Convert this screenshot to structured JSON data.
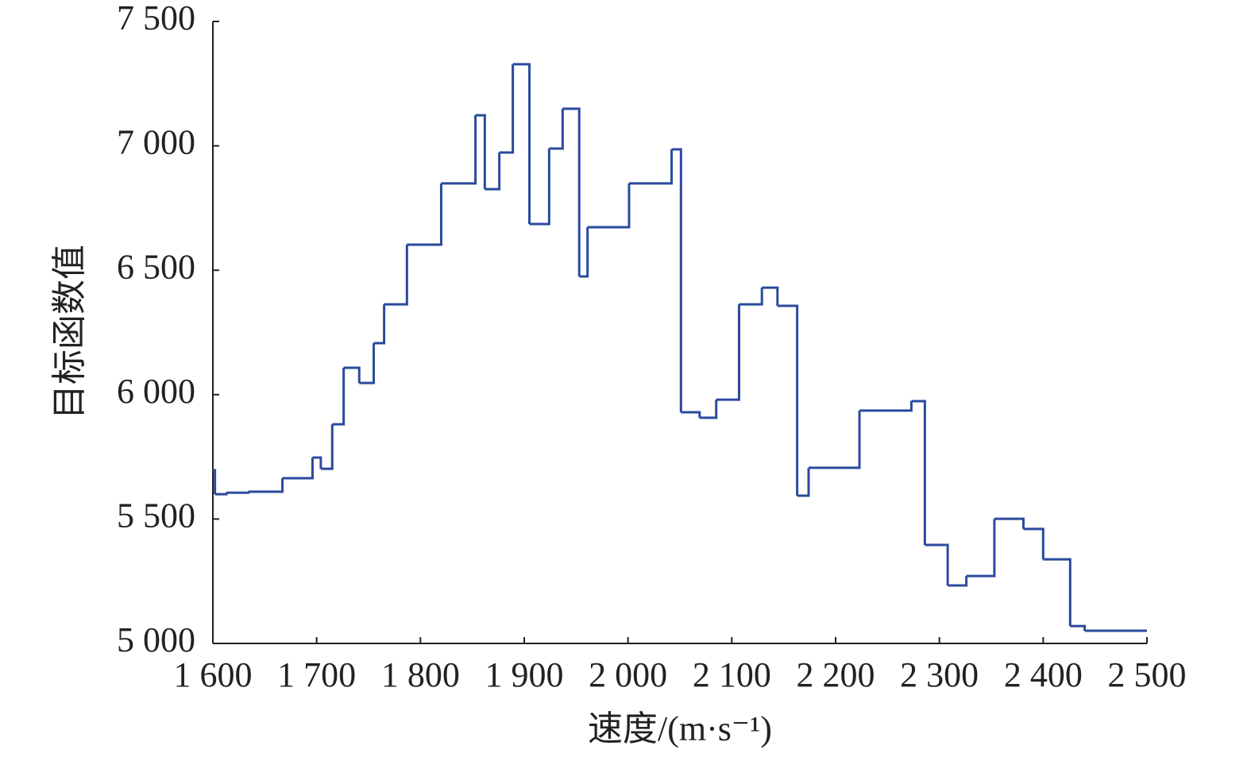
{
  "chart_data": {
    "type": "line",
    "step": "post",
    "x_label": "速度/(m·s⁻¹)",
    "y_label": "目标函数值",
    "xlim": [
      1600,
      2500
    ],
    "ylim": [
      5000,
      7500
    ],
    "xticks": [
      {
        "value": 1600,
        "label": "1 600"
      },
      {
        "value": 1700,
        "label": "1 700"
      },
      {
        "value": 1800,
        "label": "1 800"
      },
      {
        "value": 1900,
        "label": "1 900"
      },
      {
        "value": 2000,
        "label": "2 000"
      },
      {
        "value": 2100,
        "label": "2 100"
      },
      {
        "value": 2200,
        "label": "2 200"
      },
      {
        "value": 2300,
        "label": "2 300"
      },
      {
        "value": 2400,
        "label": "2 400"
      },
      {
        "value": 2500,
        "label": "2 500"
      }
    ],
    "yticks": [
      {
        "value": 5000,
        "label": "5 000"
      },
      {
        "value": 5500,
        "label": "5 500"
      },
      {
        "value": 6000,
        "label": "6 000"
      },
      {
        "value": 6500,
        "label": "6 500"
      },
      {
        "value": 7000,
        "label": "7 000"
      },
      {
        "value": 7500,
        "label": "7 500"
      }
    ],
    "grid": false,
    "series": [
      {
        "color": "#2b4a9e",
        "x": [
          1600,
          1602,
          1613,
          1634,
          1667,
          1696,
          1704,
          1715,
          1726,
          1741,
          1755,
          1765,
          1787,
          1820,
          1853,
          1862,
          1876,
          1889,
          1905,
          1924,
          1937,
          1953,
          1961,
          2001,
          2042,
          2051,
          2069,
          2085,
          2107,
          2129,
          2144,
          2163,
          2174,
          2223,
          2273,
          2286,
          2308,
          2326,
          2353,
          2381,
          2400,
          2426,
          2440,
          2500
        ],
        "values": [
          5696,
          5600,
          5606,
          5610,
          5664,
          5747,
          5702,
          5881,
          6108,
          6047,
          6207,
          6363,
          6603,
          6849,
          7123,
          6826,
          6973,
          7328,
          6686,
          6989,
          7149,
          6475,
          6673,
          6849,
          6986,
          5929,
          5907,
          5980,
          6363,
          6430,
          6357,
          5594,
          5706,
          5936,
          5974,
          5396,
          5233,
          5271,
          5501,
          5460,
          5338,
          5070,
          5051,
          5051
        ]
      }
    ]
  }
}
